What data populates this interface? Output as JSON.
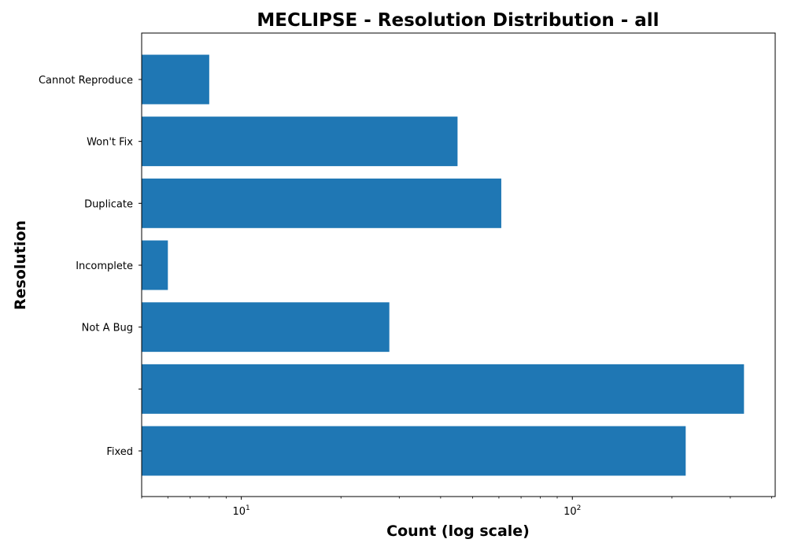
{
  "chart_data": {
    "type": "bar",
    "orientation": "horizontal",
    "title": "MECLIPSE - Resolution Distribution - all",
    "xlabel": "Count (log scale)",
    "ylabel": "Resolution",
    "x_scale": "log",
    "xlim": [
      5,
      410
    ],
    "x_ticks": [
      {
        "value": 10,
        "base": "10",
        "exp": "1"
      },
      {
        "value": 100,
        "base": "10",
        "exp": "2"
      }
    ],
    "categories": [
      "Cannot Reproduce",
      "Won't Fix",
      "Duplicate",
      "Incomplete",
      "Not A Bug",
      "",
      "Fixed"
    ],
    "values": [
      8,
      45,
      61,
      6,
      28,
      330,
      220
    ],
    "bar_color": "#1f77b4",
    "grid": false,
    "legend": "none"
  }
}
